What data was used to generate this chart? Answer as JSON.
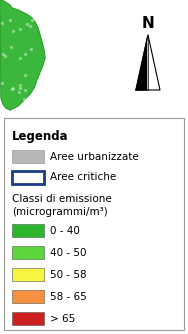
{
  "background_color": "#ffffff",
  "legend_title": "Legenda",
  "urbanized_color": "#b8b8b8",
  "urbanized_label": "Aree urbanizzate",
  "critical_color": "#ffffff",
  "critical_border_color": "#1a3a8c",
  "critical_label": "Aree critiche",
  "emission_title_line1": "Classi di emissione",
  "emission_title_line2": "(microgrammi/m³)",
  "emission_classes": [
    {
      "label": "0 - 40",
      "color": "#2db52d"
    },
    {
      "label": "40 - 50",
      "color": "#5cd63c"
    },
    {
      "label": "50 - 58",
      "color": "#f5f542"
    },
    {
      "label": "58 - 65",
      "color": "#f59040"
    },
    {
      "label": "> 65",
      "color": "#cc2020"
    }
  ],
  "north_label": "N",
  "map_green_color": "#3bb83b",
  "map_dark_spots": "#2a952a"
}
